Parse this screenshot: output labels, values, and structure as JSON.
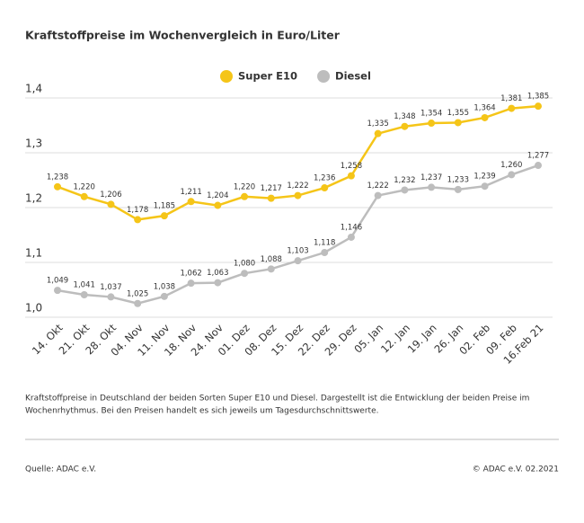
{
  "chart_data": {
    "type": "line",
    "title": "Kraftstoffpreise im Wochenvergleich in Euro/Liter",
    "categories": [
      "14. Okt",
      "21. Okt",
      "28. Okt",
      "04. Nov",
      "11. Nov",
      "18. Nov",
      "24. Nov",
      "01. Dez",
      "08. Dez",
      "15. Dez",
      "22. Dez",
      "29. Dez",
      "05. Jan",
      "12. Jan",
      "19. Jan",
      "26. Jan",
      "02. Feb",
      "09. Feb",
      "16.Feb 21"
    ],
    "series": [
      {
        "name": "Super E10",
        "color": "#f5c518",
        "values": [
          1.238,
          1.22,
          1.206,
          1.178,
          1.185,
          1.211,
          1.204,
          1.22,
          1.217,
          1.222,
          1.236,
          1.258,
          1.335,
          1.348,
          1.354,
          1.355,
          1.364,
          1.381,
          1.385
        ],
        "value_labels": [
          "1,238",
          "1,220",
          "1,206",
          "1,178",
          "1,185",
          "1,211",
          "1,204",
          "1,220",
          "1,217",
          "1,222",
          "1,236",
          "1,258",
          "1,335",
          "1,348",
          "1,354",
          "1,355",
          "1,364",
          "1,381",
          "1,385"
        ]
      },
      {
        "name": "Diesel",
        "color": "#bdbdbd",
        "values": [
          1.049,
          1.041,
          1.037,
          1.025,
          1.038,
          1.062,
          1.063,
          1.08,
          1.088,
          1.103,
          1.118,
          1.146,
          1.222,
          1.232,
          1.237,
          1.233,
          1.239,
          1.26,
          1.277
        ],
        "value_labels": [
          "1,049",
          "1,041",
          "1,037",
          "1,025",
          "1,038",
          "1,062",
          "1,063",
          "1,080",
          "1,088",
          "1,103",
          "1,118",
          "1,146",
          "1,222",
          "1,232",
          "1,237",
          "1,233",
          "1,239",
          "1,260",
          "1,277"
        ]
      }
    ],
    "ylim": [
      1.0,
      1.4
    ],
    "yticks": [
      {
        "value": 1.0,
        "label": "1,0"
      },
      {
        "value": 1.1,
        "label": "1,1"
      },
      {
        "value": 1.2,
        "label": "1,2"
      },
      {
        "value": 1.3,
        "label": "1,3"
      },
      {
        "value": 1.4,
        "label": "1,4"
      }
    ],
    "grid": true,
    "legend": "top",
    "description": [
      "Kraftstoffpreise in Deutschland der beiden Sorten Super E10 und Diesel. Dargestellt ist die Entwicklung der beiden Preise im",
      "Wochenrhythmus. Bei den Preisen handelt es sich jeweils um Tagesdurchschnittswerte."
    ],
    "source": "Quelle: ADAC e.V.",
    "copyright": "© ADAC e.V. 02.2021"
  }
}
